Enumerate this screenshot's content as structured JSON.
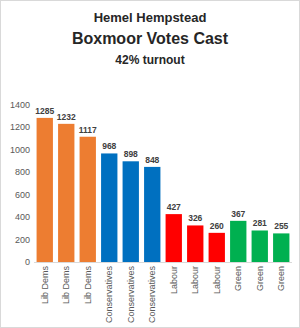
{
  "chart_data": {
    "type": "bar",
    "title": "Hemel Hempstead",
    "subtitle": "Boxmoor Votes Cast",
    "annotations": [
      "42% turnout"
    ],
    "categories": [
      "Lib Dems",
      "Lib Dems",
      "Lib Dems",
      "Conservatives",
      "Conservatives",
      "Conservatives",
      "Labour",
      "Labour",
      "Labour",
      "Green",
      "Green",
      "Green"
    ],
    "values": [
      1285,
      1232,
      1117,
      968,
      898,
      848,
      427,
      326,
      260,
      367,
      281,
      255
    ],
    "colors": [
      "#ed7d31",
      "#ed7d31",
      "#ed7d31",
      "#0070c0",
      "#0070c0",
      "#0070c0",
      "#ff0000",
      "#ff0000",
      "#ff0000",
      "#00b050",
      "#00b050",
      "#00b050"
    ],
    "ylim": [
      0,
      1400
    ],
    "yticks": [
      0,
      200,
      400,
      600,
      800,
      1000,
      1200,
      1400
    ],
    "grid": false,
    "data_labels": true
  }
}
